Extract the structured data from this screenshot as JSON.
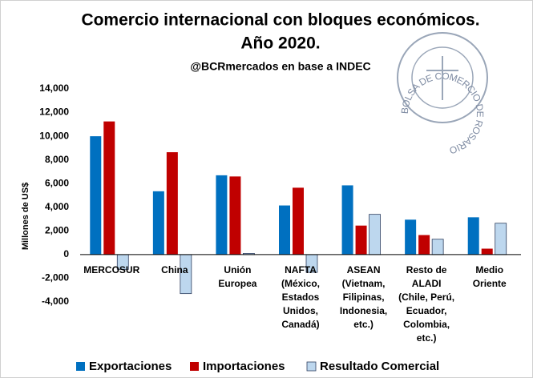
{
  "chart_data": {
    "type": "bar",
    "title": [
      "Comercio internacional con bloques económicos.",
      "Año 2020."
    ],
    "subtitle": "@BCRmercados en base a INDEC",
    "y_label": "Millones de US$",
    "logo_text": "BOLSA DE COMERCIO DE ROSARIO",
    "categories": [
      [
        "MERCOSUR"
      ],
      [
        "China"
      ],
      [
        "Unión",
        "Europea"
      ],
      [
        "NAFTA",
        "(México,",
        "Estados",
        "Unidos,",
        "Canadá)"
      ],
      [
        "ASEAN",
        "(Vietnam,",
        "Filipinas,",
        "Indonesia,",
        "etc.)"
      ],
      [
        "Resto de",
        "ALADI",
        "(Chile, Perú,",
        "Ecuador,",
        "Colombia,",
        "etc.)"
      ],
      [
        "Medio",
        "Oriente"
      ]
    ],
    "series": [
      {
        "name": "Exportaciones",
        "color": "#0070c0",
        "values": [
          10000,
          5350,
          6700,
          4150,
          5850,
          2950,
          3150
        ]
      },
      {
        "name": "Importaciones",
        "color": "#c00000",
        "values": [
          11250,
          8650,
          6600,
          5650,
          2450,
          1650,
          500
        ]
      },
      {
        "name": "Resultado Comercial",
        "color": "#bdd7ee",
        "values": [
          -1250,
          -3300,
          100,
          -1500,
          3400,
          1300,
          2650
        ]
      }
    ],
    "ylim": [
      -4000,
      14000
    ],
    "yticks": [
      {
        "value": -4000,
        "label": "-4,000"
      },
      {
        "value": -2000,
        "label": "-2,000"
      },
      0,
      {
        "value": 2000,
        "label": "2,000"
      },
      {
        "value": 4000,
        "label": "4,000"
      },
      {
        "value": 6000,
        "label": "6,000"
      },
      {
        "value": 8000,
        "label": "8,000"
      },
      {
        "value": 10000,
        "label": "10,000"
      },
      {
        "value": 12000,
        "label": "12,000"
      },
      {
        "value": 14000,
        "label": "14,000"
      }
    ],
    "grid": false
  }
}
